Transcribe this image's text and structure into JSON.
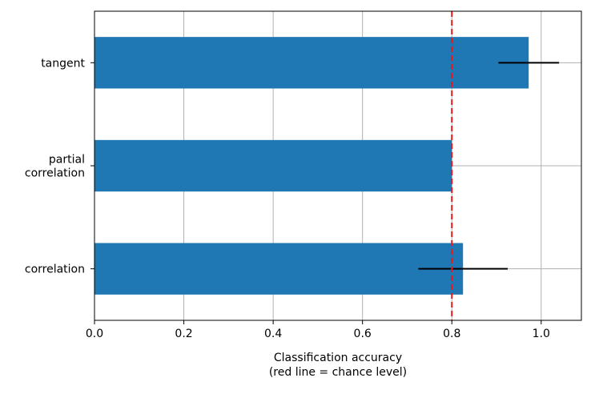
{
  "chart_data": {
    "type": "bar",
    "orientation": "horizontal",
    "categories": [
      {
        "lines": [
          "correlation"
        ]
      },
      {
        "lines": [
          "partial",
          "correlation"
        ]
      },
      {
        "lines": [
          "tangent"
        ]
      }
    ],
    "values": [
      0.825,
      0.8,
      0.972
    ],
    "errors": [
      0.1,
      0.0,
      0.068
    ],
    "xlabel_lines": [
      "Classification accuracy",
      "(red line = chance level)"
    ],
    "ylabel": "",
    "title": "",
    "xlim": [
      0.0,
      1.09
    ],
    "xticks": [
      0.0,
      0.2,
      0.4,
      0.6,
      0.8,
      1.0
    ],
    "xtick_labels": [
      "0.0",
      "0.2",
      "0.4",
      "0.6",
      "0.8",
      "1.0"
    ],
    "reference_line": {
      "x": 0.8,
      "style": "dashed",
      "color": "#e41a1c"
    },
    "grid": true,
    "bar_color": "#1f77b4",
    "error_color": "#000000",
    "grid_color": "#b0b0b0"
  }
}
